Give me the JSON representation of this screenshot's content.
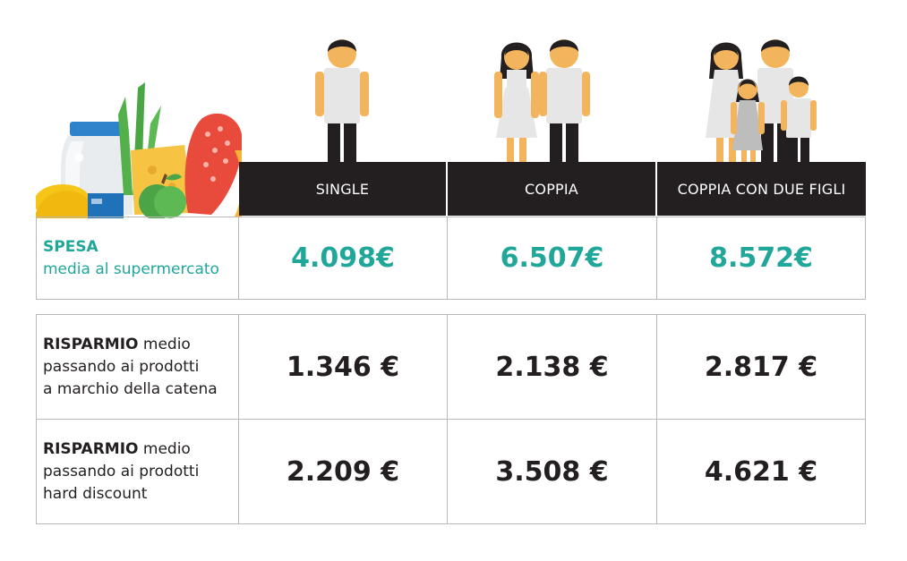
{
  "colors": {
    "teal": "#20a79a",
    "dark": "#231f20",
    "border": "#b9b9b9"
  },
  "icons": [
    "groceries-illustration",
    "single-person-icon",
    "couple-icon",
    "family-icon"
  ],
  "columns": [
    "SINGLE",
    "COPPIA",
    "COPPIA CON DUE FIGLI"
  ],
  "rows": [
    {
      "label_bold": "SPESA",
      "label_rest": "media al supermercato",
      "values": [
        "4.098€",
        "6.507€",
        "8.572€"
      ]
    },
    {
      "label_bold": "RISPARMIO",
      "label_line1_rest": " medio",
      "label_line2": "passando ai prodotti",
      "label_line3": "a marchio della catena",
      "values": [
        "1.346 €",
        "2.138 €",
        "2.817 €"
      ]
    },
    {
      "label_bold": "RISPARMIO",
      "label_line1_rest": " medio",
      "label_line2": "passando ai prodotti",
      "label_line3": "hard discount",
      "values": [
        "2.209 €",
        "3.508 €",
        "4.621 €"
      ]
    }
  ]
}
